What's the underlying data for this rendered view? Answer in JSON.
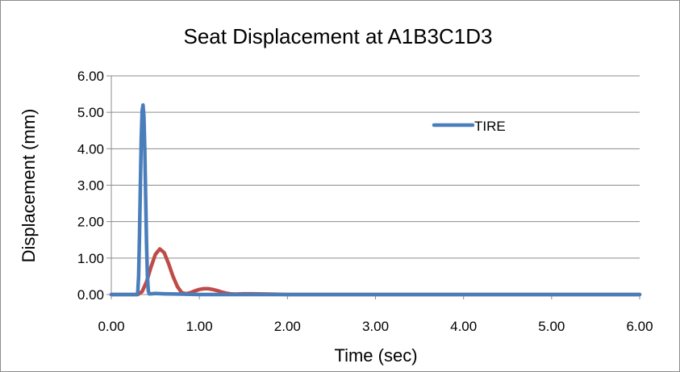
{
  "chart_data": {
    "type": "line",
    "title": "Seat Displacement at A1B3C1D3",
    "xlabel": "Time (sec)",
    "ylabel": "Displacement (mm)",
    "xlim": [
      0,
      6
    ],
    "ylim": [
      0,
      6
    ],
    "x_ticks": [
      "0.00",
      "1.00",
      "2.00",
      "3.00",
      "4.00",
      "5.00",
      "6.00"
    ],
    "y_ticks": [
      "0.00",
      "1.00",
      "2.00",
      "3.00",
      "4.00",
      "5.00",
      "6.00"
    ],
    "grid": "horizontal",
    "legend_position": "top-right",
    "series": [
      {
        "name": "TIRE",
        "color": "#4a7ebb",
        "x": [
          0,
          0.29,
          0.3,
          0.31,
          0.32,
          0.33,
          0.34,
          0.35,
          0.36,
          0.37,
          0.38,
          0.39,
          0.4,
          0.41,
          0.42,
          0.43,
          0.45,
          0.5,
          0.6,
          0.8,
          1.0,
          6.0
        ],
        "y": [
          0,
          0,
          0.05,
          0.5,
          1.6,
          3.0,
          4.3,
          5.05,
          5.2,
          4.9,
          4.0,
          2.7,
          1.4,
          0.5,
          0.1,
          0.02,
          0.02,
          0.03,
          0.02,
          0.01,
          0.0,
          0.0
        ]
      },
      {
        "series_note": "",
        "color": "#be4b48",
        "x": [
          0,
          0.3,
          0.35,
          0.4,
          0.45,
          0.5,
          0.55,
          0.6,
          0.65,
          0.7,
          0.75,
          0.8,
          0.85,
          0.9,
          0.95,
          1.0,
          1.05,
          1.1,
          1.15,
          1.2,
          1.25,
          1.3,
          1.35,
          1.4,
          1.5,
          1.6,
          1.8,
          2.0,
          6.0
        ],
        "y": [
          0,
          0,
          0.08,
          0.35,
          0.75,
          1.1,
          1.25,
          1.15,
          0.85,
          0.5,
          0.22,
          0.05,
          0.02,
          0.05,
          0.1,
          0.14,
          0.16,
          0.16,
          0.14,
          0.11,
          0.07,
          0.04,
          0.02,
          0.01,
          0.02,
          0.02,
          0.01,
          0.0,
          0.0
        ]
      }
    ]
  }
}
